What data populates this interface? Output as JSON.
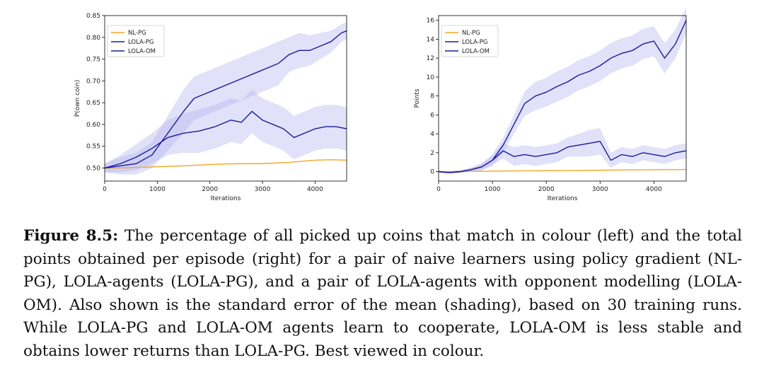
{
  "chart_data": [
    {
      "type": "line",
      "xlabel": "Iterations",
      "ylabel": "P(own coin)",
      "xlim": [
        0,
        4600
      ],
      "ylim": [
        0.47,
        0.85
      ],
      "xticks": [
        0,
        1000,
        2000,
        3000,
        4000
      ],
      "yticks": [
        0.5,
        0.55,
        0.6,
        0.65,
        0.7,
        0.75,
        0.8,
        0.85
      ],
      "ytick_decimals": 2,
      "legend": "top-left",
      "series": [
        {
          "name": "NL-PG",
          "color": "#f5a623",
          "band": false,
          "x": [
            0,
            500,
            1000,
            1500,
            2000,
            2500,
            3000,
            3500,
            4000,
            4300,
            4600
          ],
          "y": [
            0.5,
            0.501,
            0.503,
            0.505,
            0.508,
            0.51,
            0.51,
            0.513,
            0.518,
            0.519,
            0.518
          ],
          "err": [
            0.002,
            0.002,
            0.002,
            0.002,
            0.002,
            0.002,
            0.002,
            0.002,
            0.002,
            0.002,
            0.002
          ]
        },
        {
          "name": "LOLA-PG",
          "color": "#1a1a99",
          "band": true,
          "x": [
            0,
            300,
            600,
            900,
            1200,
            1500,
            1700,
            1900,
            2100,
            2300,
            2500,
            2700,
            2900,
            3100,
            3300,
            3500,
            3700,
            3900,
            4100,
            4300,
            4500,
            4600
          ],
          "y": [
            0.5,
            0.505,
            0.51,
            0.53,
            0.58,
            0.63,
            0.66,
            0.67,
            0.68,
            0.69,
            0.7,
            0.71,
            0.72,
            0.73,
            0.74,
            0.76,
            0.77,
            0.77,
            0.78,
            0.79,
            0.81,
            0.815
          ],
          "err": [
            0.01,
            0.02,
            0.025,
            0.03,
            0.04,
            0.05,
            0.05,
            0.05,
            0.05,
            0.05,
            0.05,
            0.05,
            0.05,
            0.05,
            0.05,
            0.04,
            0.04,
            0.035,
            0.03,
            0.025,
            0.02,
            0.02
          ]
        },
        {
          "name": "LOLA-OM",
          "color": "#1a1a99",
          "band": true,
          "x": [
            0,
            300,
            600,
            900,
            1200,
            1500,
            1800,
            2100,
            2400,
            2600,
            2800,
            3000,
            3200,
            3400,
            3600,
            3800,
            4000,
            4200,
            4400,
            4600
          ],
          "y": [
            0.5,
            0.51,
            0.525,
            0.545,
            0.57,
            0.58,
            0.585,
            0.595,
            0.61,
            0.605,
            0.63,
            0.61,
            0.6,
            0.59,
            0.57,
            0.58,
            0.59,
            0.595,
            0.595,
            0.59
          ],
          "err": [
            0.01,
            0.02,
            0.03,
            0.035,
            0.04,
            0.045,
            0.05,
            0.05,
            0.05,
            0.05,
            0.05,
            0.05,
            0.05,
            0.05,
            0.05,
            0.05,
            0.05,
            0.05,
            0.05,
            0.05
          ]
        }
      ]
    },
    {
      "type": "line",
      "xlabel": "Iterations",
      "ylabel": "Points",
      "xlim": [
        0,
        4600
      ],
      "ylim": [
        -1,
        16.5
      ],
      "xticks": [
        0,
        1000,
        2000,
        3000,
        4000
      ],
      "yticks": [
        0,
        2,
        4,
        6,
        8,
        10,
        12,
        14,
        16
      ],
      "ytick_decimals": 0,
      "legend": "top-left",
      "series": [
        {
          "name": "NL-PG",
          "color": "#f5a623",
          "band": false,
          "x": [
            0,
            500,
            1000,
            1500,
            2000,
            2500,
            3000,
            3500,
            4000,
            4600
          ],
          "y": [
            0.0,
            0.02,
            0.05,
            0.08,
            0.1,
            0.12,
            0.15,
            0.18,
            0.2,
            0.22
          ],
          "err": [
            0.03,
            0.03,
            0.03,
            0.03,
            0.03,
            0.03,
            0.03,
            0.03,
            0.03,
            0.03
          ]
        },
        {
          "name": "LOLA-PG",
          "color": "#1a1a99",
          "band": true,
          "x": [
            0,
            200,
            400,
            600,
            800,
            1000,
            1200,
            1400,
            1600,
            1800,
            2000,
            2200,
            2400,
            2600,
            2800,
            3000,
            3200,
            3400,
            3600,
            3800,
            4000,
            4200,
            4400,
            4600
          ],
          "y": [
            0,
            -0.1,
            0,
            0.2,
            0.5,
            1.2,
            2.8,
            5.0,
            7.2,
            8.0,
            8.4,
            9.0,
            9.5,
            10.2,
            10.6,
            11.2,
            12.0,
            12.5,
            12.8,
            13.5,
            13.8,
            12.0,
            13.5,
            16.0
          ],
          "err": [
            0.1,
            0.1,
            0.15,
            0.2,
            0.4,
            0.6,
            0.8,
            1.0,
            1.3,
            1.5,
            1.5,
            1.6,
            1.6,
            1.6,
            1.6,
            1.6,
            1.6,
            1.6,
            1.6,
            1.6,
            1.6,
            1.6,
            1.5,
            1.4
          ]
        },
        {
          "name": "LOLA-OM",
          "color": "#1a1a99",
          "band": true,
          "x": [
            0,
            200,
            400,
            600,
            800,
            1000,
            1200,
            1400,
            1600,
            1800,
            2000,
            2200,
            2400,
            2600,
            2800,
            3000,
            3200,
            3400,
            3600,
            3800,
            4000,
            4200,
            4400,
            4600
          ],
          "y": [
            0,
            -0.1,
            0,
            0.2,
            0.5,
            1.2,
            2.2,
            1.6,
            1.8,
            1.6,
            1.8,
            2.0,
            2.6,
            2.8,
            3.0,
            3.2,
            1.2,
            1.8,
            1.6,
            2.0,
            1.8,
            1.6,
            2.0,
            2.2
          ],
          "err": [
            0.1,
            0.1,
            0.15,
            0.2,
            0.3,
            0.5,
            0.8,
            1.0,
            1.0,
            1.0,
            1.0,
            1.0,
            1.0,
            1.2,
            1.4,
            1.4,
            0.8,
            0.8,
            0.8,
            0.8,
            0.8,
            0.8,
            0.8,
            0.8
          ]
        }
      ]
    }
  ],
  "caption": {
    "label": "Figure 8.5:",
    "text": " The percentage of all picked up coins that match in colour (left) and the total points obtained per episode (right) for a pair of naive learners using policy gradient (NL-PG), LOLA-agents (LOLA-PG), and a pair of LOLA-agents with opponent modelling (LOLA-OM). Also shown is the standard error of the mean (shading), based on 30 training runs. While LOLA-PG and LOLA-OM agents learn to cooperate, LOLA-OM is less stable and obtains lower returns than LOLA-PG. Best viewed in colour."
  }
}
